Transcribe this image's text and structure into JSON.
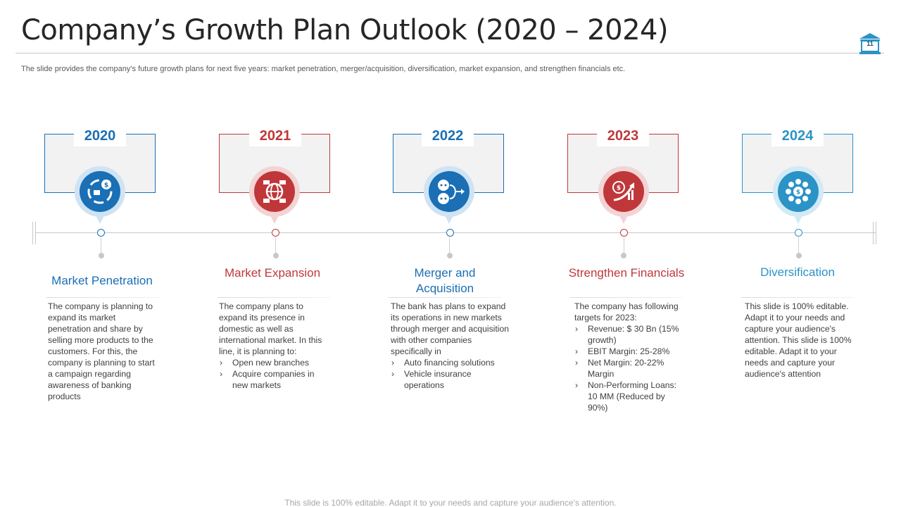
{
  "title": "Company’s Growth Plan Outlook (2020 – 2024)",
  "page_number": "11",
  "subtitle": "The slide provides the company’s future growth plans for next five years: market penetration, merger/acquisition, diversification, market expansion, and strengthen financials etc.",
  "colors": {
    "blue": "#1a6fb5",
    "red": "#c0373a",
    "teal": "#2b93c6"
  },
  "milestones": [
    {
      "year": "2020",
      "icon": "money-cycle-icon",
      "title": "Market Penetration",
      "paragraph": "The company is planning to expand its market penetration and share by selling more products to the customers. For this, the company is planning to start a campaign regarding awareness of banking products",
      "bullets": []
    },
    {
      "year": "2021",
      "icon": "global-network-icon",
      "title": "Market Expansion",
      "paragraph": "The company plans to expand its presence in domestic as well as international market. In this line, it is planning to:",
      "bullets": [
        "Open new branches",
        "Acquire companies in new markets"
      ]
    },
    {
      "year": "2022",
      "icon": "merger-icon",
      "title": "Merger and Acquisition",
      "paragraph": "The bank has plans to expand its operations in new markets through merger and acquisition with other companies specifically in",
      "bullets": [
        "Auto financing solutions",
        "Vehicle insurance operations"
      ]
    },
    {
      "year": "2023",
      "icon": "growth-chart-icon",
      "title": "Strengthen Financials",
      "paragraph": "The company has following targets for 2023:",
      "bullets": [
        "Revenue: $ 30 Bn (15% growth)",
        "EBIT Margin: 25-28%",
        "Net Margin: 20-22% Margin",
        "Non-Performing Loans: 10 MM (Reduced by 90%)"
      ]
    },
    {
      "year": "2024",
      "icon": "diversification-icon",
      "title": "Diversification",
      "paragraph": "This slide is 100% editable. Adapt it to your needs and capture your audience's attention. This slide is 100% editable. Adapt it to your needs and capture your audience's attention",
      "bullets": []
    }
  ],
  "footer": "This slide is 100% editable. Adapt it to your needs and capture your audience's attention."
}
